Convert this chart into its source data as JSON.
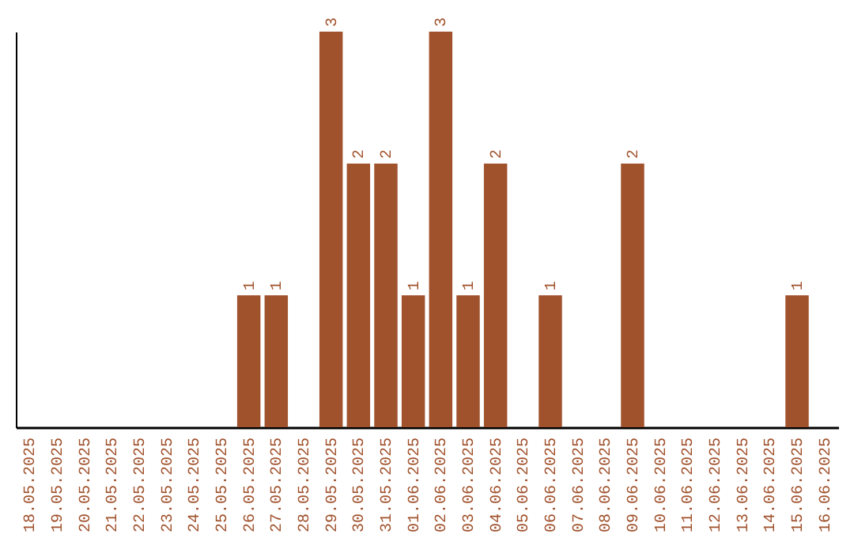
{
  "chart_data": {
    "type": "bar",
    "categories": [
      "18.05.2025",
      "19.05.2025",
      "20.05.2025",
      "21.05.2025",
      "22.05.2025",
      "23.05.2025",
      "24.05.2025",
      "25.05.2025",
      "26.05.2025",
      "27.05.2025",
      "28.05.2025",
      "29.05.2025",
      "30.05.2025",
      "31.05.2025",
      "01.06.2025",
      "02.06.2025",
      "03.06.2025",
      "04.06.2025",
      "05.06.2025",
      "06.06.2025",
      "07.06.2025",
      "08.06.2025",
      "09.06.2025",
      "10.06.2025",
      "11.06.2025",
      "12.06.2025",
      "13.06.2025",
      "14.06.2025",
      "15.06.2025",
      "16.06.2025"
    ],
    "values": [
      null,
      null,
      null,
      null,
      null,
      null,
      null,
      null,
      1,
      1,
      null,
      3,
      2,
      2,
      1,
      3,
      1,
      2,
      null,
      1,
      null,
      null,
      2,
      null,
      null,
      null,
      null,
      null,
      1,
      null
    ],
    "color": "#a0522d",
    "ylim": [
      0,
      3
    ],
    "tick_labels": "x",
    "data_labels": true,
    "grid": false
  }
}
